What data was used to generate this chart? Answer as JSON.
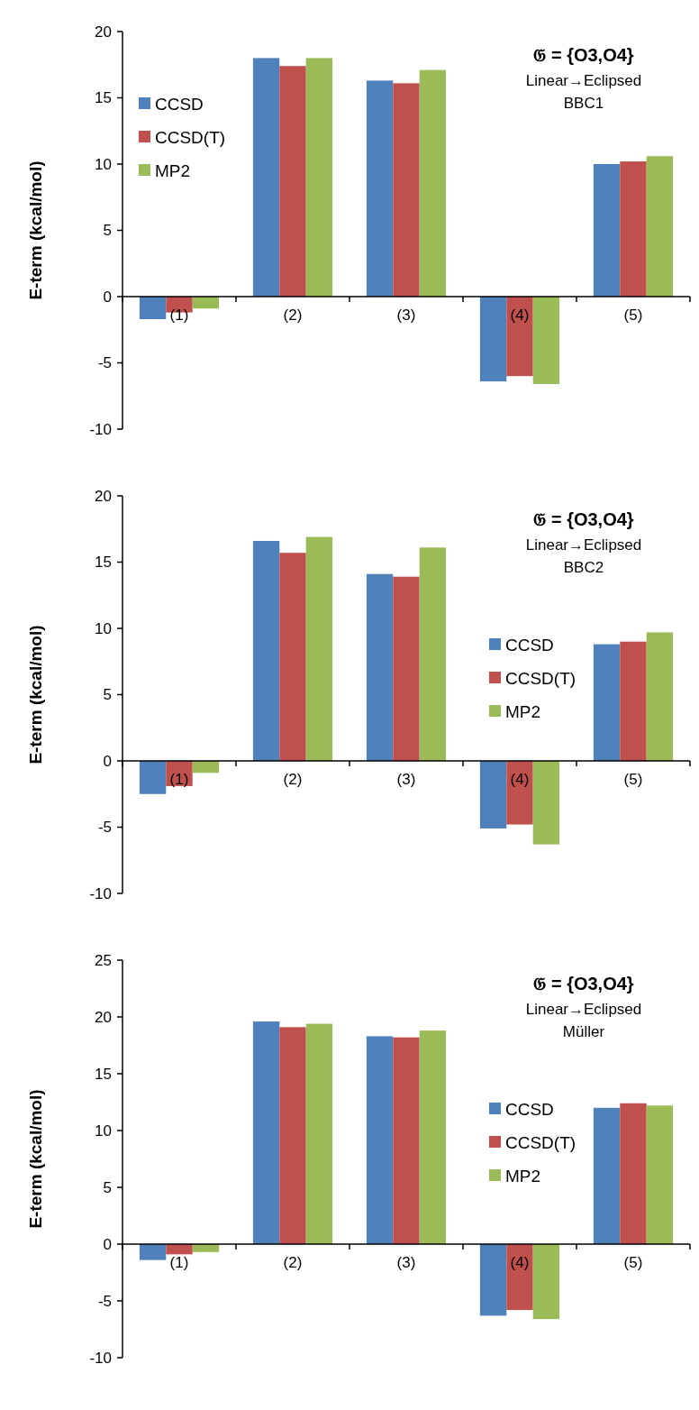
{
  "chart_data": [
    {
      "type": "bar",
      "ylabel": "E-term  (kcal/mol)",
      "categories": [
        "(1)",
        "(2)",
        "(3)",
        "(4)",
        "(5)"
      ],
      "ylim": [
        -10,
        20
      ],
      "yticks": [
        -10,
        -5,
        0,
        5,
        10,
        15,
        20
      ],
      "legend": "top left",
      "annotations": [
        "𝔊 = {O3,O4}",
        "Linear→Eclipsed",
        "BBC1"
      ],
      "series": [
        {
          "name": "CCSD",
          "color": "#4f81bd",
          "values": [
            -1.7,
            18.0,
            16.3,
            -6.4,
            10.0
          ]
        },
        {
          "name": "CCSD(T)",
          "color": "#c0504d",
          "values": [
            -1.2,
            17.4,
            16.1,
            -6.0,
            10.2
          ]
        },
        {
          "name": "MP2",
          "color": "#9bbb59",
          "values": [
            -0.9,
            18.0,
            17.1,
            -6.6,
            10.6
          ]
        }
      ]
    },
    {
      "type": "bar",
      "ylabel": "E-term  (kcal/mol)",
      "categories": [
        "(1)",
        "(2)",
        "(3)",
        "(4)",
        "(5)"
      ],
      "ylim": [
        -10,
        20
      ],
      "yticks": [
        -10,
        -5,
        0,
        5,
        10,
        15,
        20
      ],
      "legend": "right",
      "annotations": [
        "𝔊 = {O3,O4}",
        "Linear→Eclipsed",
        "BBC2"
      ],
      "series": [
        {
          "name": "CCSD",
          "color": "#4f81bd",
          "values": [
            -2.5,
            16.6,
            14.1,
            -5.1,
            8.8
          ]
        },
        {
          "name": "CCSD(T)",
          "color": "#c0504d",
          "values": [
            -1.9,
            15.7,
            13.9,
            -4.8,
            9.0
          ]
        },
        {
          "name": "MP2",
          "color": "#9bbb59",
          "values": [
            -0.9,
            16.9,
            16.1,
            -6.3,
            9.7
          ]
        }
      ]
    },
    {
      "type": "bar",
      "ylabel": "E-term  (kcal/mol)",
      "categories": [
        "(1)",
        "(2)",
        "(3)",
        "(4)",
        "(5)"
      ],
      "ylim": [
        -10,
        25
      ],
      "yticks": [
        -10,
        -5,
        0,
        5,
        10,
        15,
        20,
        25
      ],
      "legend": "right",
      "annotations": [
        "𝔊 = {O3,O4}",
        "Linear→Eclipsed",
        "Müller"
      ],
      "series": [
        {
          "name": "CCSD",
          "color": "#4f81bd",
          "values": [
            -1.4,
            19.6,
            18.3,
            -6.3,
            12.0
          ]
        },
        {
          "name": "CCSD(T)",
          "color": "#c0504d",
          "values": [
            -0.9,
            19.1,
            18.2,
            -5.8,
            12.4
          ]
        },
        {
          "name": "MP2",
          "color": "#9bbb59",
          "values": [
            -0.7,
            19.4,
            18.8,
            -6.6,
            12.2
          ]
        }
      ]
    }
  ]
}
